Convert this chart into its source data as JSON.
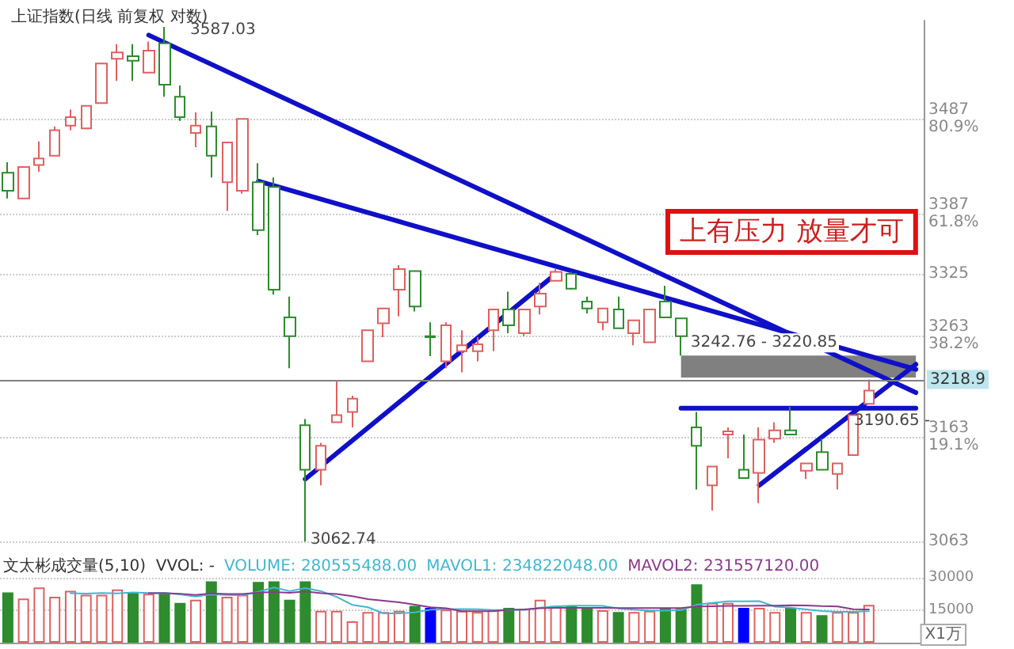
{
  "chart_data": [
    {
      "type": "candlestick",
      "title": "上证指数(日线 前复权 对数)",
      "categories": [
        null,
        null,
        null,
        null,
        null,
        null,
        null,
        null,
        null,
        null,
        null,
        null,
        null,
        null,
        null,
        null,
        null,
        null,
        null,
        null,
        null,
        null,
        null,
        null,
        null,
        null,
        null,
        null,
        null,
        null,
        null,
        null,
        null,
        null,
        null,
        null,
        null,
        null,
        null,
        null,
        null,
        null,
        null,
        null,
        null,
        null,
        null,
        null,
        null,
        null,
        null,
        null,
        null,
        null,
        null,
        null,
        null,
        null,
        null
      ],
      "ohlc": [
        [
          3430,
          3441,
          3403,
          3411
        ],
        [
          3403,
          3436,
          3403,
          3436
        ],
        [
          3438,
          3463,
          3431,
          3445
        ],
        [
          3448,
          3479,
          3448,
          3475
        ],
        [
          3480,
          3497,
          3475,
          3489
        ],
        [
          3477,
          3502,
          3477,
          3501
        ],
        [
          3504,
          3547,
          3504,
          3547
        ],
        [
          3552,
          3568,
          3528,
          3559
        ],
        [
          3555,
          3568,
          3528,
          3550
        ],
        [
          3537,
          3571,
          3537,
          3561
        ],
        [
          3569,
          3587.03,
          3511,
          3524
        ],
        [
          3511,
          3523,
          3485,
          3489
        ],
        [
          3472,
          3494,
          3457,
          3480
        ],
        [
          3479,
          3495,
          3425,
          3448
        ],
        [
          3420,
          3462,
          3390,
          3462
        ],
        [
          3411,
          3487,
          3408,
          3487
        ],
        [
          3420,
          3440,
          3365,
          3370
        ],
        [
          3415,
          3425,
          3304,
          3309
        ],
        [
          3281,
          3302,
          3230,
          3262
        ],
        [
          3174,
          3180,
          3062.74,
          3131
        ],
        [
          3131,
          3157,
          3116,
          3154
        ],
        [
          3177,
          3217,
          3177,
          3184
        ],
        [
          3187,
          3203,
          3172,
          3200
        ],
        [
          3237,
          3268,
          3237,
          3268
        ],
        [
          3275,
          3290,
          3261,
          3290
        ],
        [
          3309,
          3334,
          3282,
          3330
        ],
        [
          3328,
          3328,
          3287,
          3292
        ],
        [
          3262,
          3276,
          3242,
          3261
        ],
        [
          3237,
          3276,
          3230,
          3273
        ],
        [
          3247,
          3268,
          3226,
          3253
        ],
        [
          3247,
          3261,
          3237,
          3254
        ],
        [
          3268,
          3289,
          3247,
          3289
        ],
        [
          3289,
          3307,
          3265,
          3273
        ],
        [
          3265,
          3289,
          3262,
          3289
        ],
        [
          3292,
          3316,
          3284,
          3305
        ],
        [
          3318,
          3330,
          3318,
          3327
        ],
        [
          3325,
          3327,
          3309,
          3310
        ],
        [
          3297,
          3302,
          3285,
          3290
        ],
        [
          3276,
          3290,
          3268,
          3290
        ],
        [
          3289,
          3302,
          3270,
          3270
        ],
        [
          3265,
          3278,
          3253,
          3278
        ],
        [
          3256,
          3289,
          3256,
          3289
        ],
        [
          3297,
          3313,
          3281,
          3281
        ],
        [
          3280,
          3280,
          3242.76,
          3262
        ],
        [
          3172,
          3187,
          3112,
          3154
        ],
        [
          3116,
          3134,
          3092,
          3134
        ],
        [
          3165,
          3172,
          3142,
          3168
        ],
        [
          3131,
          3165,
          3123,
          3123
        ],
        [
          3128,
          3172,
          3099,
          3160
        ],
        [
          3161,
          3177,
          3157,
          3169
        ],
        [
          3169,
          3192,
          3165,
          3165
        ],
        [
          3130,
          3137,
          3122,
          3137
        ],
        [
          3148,
          3161,
          3131,
          3131
        ],
        [
          3127,
          3137,
          3112,
          3137
        ],
        [
          3145,
          3184,
          3145,
          3184
        ],
        [
          3195,
          3218.9,
          3195,
          3208
        ],
        null,
        null,
        null
      ],
      "colors": [
        "#2e8b2e",
        "#e06060",
        "#e06060",
        "#e06060",
        "#e06060",
        "#e06060",
        "#e06060",
        "#e06060",
        "#2e8b2e",
        "#e06060",
        "#2e8b2e",
        "#2e8b2e",
        "#e06060",
        "#2e8b2e",
        "#e06060",
        "#e06060",
        "#2e8b2e",
        "#2e8b2e",
        "#2e8b2e",
        "#2e8b2e",
        "#e06060",
        "#e06060",
        "#e06060",
        "#e06060",
        "#e06060",
        "#e06060",
        "#2e8b2e",
        "#2e8b2e",
        "#e06060",
        "#e06060",
        "#e06060",
        "#e06060",
        "#2e8b2e",
        "#e06060",
        "#e06060",
        "#e06060",
        "#2e8b2e",
        "#2e8b2e",
        "#e06060",
        "#2e8b2e",
        "#e06060",
        "#e06060",
        "#2e8b2e",
        "#2e8b2e",
        "#2e8b2e",
        "#e06060",
        "#e06060",
        "#2e8b2e",
        "#e06060",
        "#e06060",
        "#2e8b2e",
        "#e06060",
        "#2e8b2e",
        "#e06060",
        "#e06060",
        "#e06060",
        null,
        null,
        null
      ],
      "series": [
        {
          "type": "line",
          "color": "#1010c8",
          "values": [
            null,
            null,
            null,
            null,
            null,
            null,
            null,
            null,
            null,
            3578,
            null,
            null,
            null,
            null,
            null,
            null,
            null,
            null,
            null,
            null,
            null,
            null,
            null,
            null,
            null,
            null,
            null,
            null,
            null,
            null,
            null,
            null,
            null,
            null,
            null,
            null,
            null,
            null,
            null,
            null,
            null,
            null,
            null,
            null,
            null,
            null,
            null,
            null,
            null,
            null,
            null,
            null,
            null,
            null,
            null,
            null,
            null,
            null,
            3206
          ]
        },
        {
          "type": "line",
          "color": "#1010c8",
          "values": [
            null,
            null,
            null,
            null,
            null,
            null,
            null,
            null,
            null,
            null,
            null,
            null,
            null,
            null,
            null,
            null,
            3421,
            null,
            null,
            null,
            null,
            null,
            null,
            null,
            null,
            null,
            null,
            null,
            null,
            null,
            null,
            null,
            null,
            null,
            null,
            null,
            null,
            null,
            null,
            null,
            null,
            null,
            null,
            null,
            null,
            null,
            null,
            null,
            null,
            null,
            null,
            null,
            null,
            null,
            null,
            null,
            null,
            null,
            3229
          ]
        },
        {
          "type": "line",
          "color": "#1010c8",
          "values": [
            null,
            null,
            null,
            null,
            null,
            null,
            null,
            null,
            null,
            null,
            null,
            null,
            null,
            null,
            null,
            null,
            null,
            null,
            null,
            3122,
            null,
            null,
            null,
            null,
            null,
            null,
            null,
            null,
            null,
            null,
            null,
            null,
            null,
            null,
            null,
            3325,
            null,
            null,
            null,
            null,
            null,
            null,
            null,
            null,
            null,
            null,
            null,
            null,
            null,
            null,
            null,
            null,
            null,
            null,
            null,
            null,
            null,
            null,
            null
          ]
        },
        {
          "type": "line",
          "color": "#1010c8",
          "values": [
            null,
            null,
            null,
            null,
            null,
            null,
            null,
            null,
            null,
            null,
            null,
            null,
            null,
            null,
            null,
            null,
            null,
            null,
            null,
            null,
            null,
            null,
            null,
            null,
            null,
            null,
            null,
            null,
            null,
            null,
            null,
            null,
            null,
            null,
            null,
            null,
            null,
            null,
            null,
            null,
            null,
            null,
            null,
            3190.65,
            null,
            null,
            null,
            null,
            null,
            null,
            null,
            null,
            null,
            null,
            null,
            null,
            null,
            null,
            3190.65
          ]
        },
        {
          "type": "line",
          "color": "#1010c8",
          "values": [
            null,
            null,
            null,
            null,
            null,
            null,
            null,
            null,
            null,
            null,
            null,
            null,
            null,
            null,
            null,
            null,
            null,
            null,
            null,
            null,
            null,
            null,
            null,
            null,
            null,
            null,
            null,
            null,
            null,
            null,
            null,
            null,
            null,
            null,
            null,
            null,
            null,
            null,
            null,
            null,
            null,
            null,
            null,
            null,
            null,
            null,
            null,
            null,
            3116,
            null,
            null,
            null,
            null,
            null,
            null,
            null,
            null,
            null,
            3234
          ]
        }
      ],
      "log": true,
      "ylim": [
        3048,
        3594
      ],
      "yticks": [
        {
          "value": 3063,
          "label": "3063"
        },
        {
          "value": 3163,
          "label": "3163\n19.1%"
        },
        {
          "value": 3263,
          "label": "3263\n38.2%"
        },
        {
          "value": 3325,
          "label": "3325"
        },
        {
          "value": 3387,
          "label": "3387\n61.8%"
        },
        {
          "value": 3487,
          "label": "3487\n80.9%"
        }
      ],
      "ref_lines": [
        {
          "axis": "y",
          "value": 3218.9,
          "label": "3218.9",
          "color": "#808080"
        }
      ],
      "bands": [
        {
          "axis": "y",
          "from": 3220.85,
          "to": 3242.76,
          "label": "3242.76 - 3220.85",
          "color": "#808080"
        }
      ],
      "annotations": [
        "3587.03",
        "3062.74",
        {
          "text": "3190.65 -",
          "y": 3190.65
        },
        "上有压力 放量才可"
      ],
      "grid": "y",
      "marker": "none",
      "tick_labels": "y"
    },
    {
      "type": "bar",
      "ylabel": "X1万",
      "categories": [
        null,
        null,
        null,
        null,
        null,
        null,
        null,
        null,
        null,
        null,
        null,
        null,
        null,
        null,
        null,
        null,
        null,
        null,
        null,
        null,
        null,
        null,
        null,
        null,
        null,
        null,
        null,
        null,
        null,
        null,
        null,
        null,
        null,
        null,
        null,
        null,
        null,
        null,
        null,
        null,
        null,
        null,
        null,
        null,
        null,
        null,
        null,
        null,
        null,
        null,
        null,
        null,
        null,
        null,
        null,
        null,
        null,
        null,
        null
      ],
      "series": [
        {
          "type": "bar",
          "colors": [
            "#2e8b2e",
            "#e06060",
            "#e06060",
            "#e06060",
            "#e06060",
            "#e06060",
            "#e06060",
            "#e06060",
            "#2e8b2e",
            "#e06060",
            "#2e8b2e",
            "#2e8b2e",
            "#e06060",
            "#2e8b2e",
            "#e06060",
            "#e06060",
            "#2e8b2e",
            "#2e8b2e",
            "#2e8b2e",
            "#2e8b2e",
            "#e06060",
            "#e06060",
            "#e06060",
            "#e06060",
            "#e06060",
            "#e06060",
            "#2e8b2e",
            "#0000ff",
            "#e06060",
            "#e06060",
            "#e06060",
            "#e06060",
            "#2e8b2e",
            "#e06060",
            "#e06060",
            "#e06060",
            "#2e8b2e",
            "#2e8b2e",
            "#e06060",
            "#2e8b2e",
            "#e06060",
            "#e06060",
            "#2e8b2e",
            "#2e8b2e",
            "#2e8b2e",
            "#e06060",
            "#e06060",
            "#0000ff",
            "#e06060",
            "#e06060",
            "#2e8b2e",
            "#e06060",
            "#2e8b2e",
            "#e06060",
            "#e06060",
            "#e06060",
            null,
            null,
            null
          ],
          "values": [
            23200,
            20400,
            25500,
            21200,
            24000,
            22100,
            22100,
            24600,
            23200,
            22600,
            22600,
            18400,
            19800,
            28300,
            21200,
            22100,
            28055.5488,
            28300,
            19800,
            28300,
            14700,
            14700,
            9900,
            14200,
            14200,
            14700,
            17000,
            16100,
            15300,
            14700,
            14200,
            15300,
            16100,
            15600,
            19800,
            17000,
            17000,
            16100,
            15000,
            14200,
            14200,
            14700,
            16100,
            15600,
            27000,
            18400,
            18400,
            16100,
            16100,
            14200,
            16100,
            14200,
            12700,
            14200,
            14200,
            17500,
            null,
            null,
            null
          ]
        },
        {
          "type": "line",
          "color": "#40b8d0",
          "values": [
            null,
            null,
            null,
            null,
            22860,
            22640,
            22980,
            22800,
            23200,
            22920,
            23020,
            22280,
            21320,
            22340,
            22060,
            21960,
            23482.2048,
            25520,
            23820,
            25240,
            23760,
            21160,
            17480,
            16360,
            13540,
            13540,
            14000,
            15240,
            15460,
            15560,
            15460,
            15120,
            15120,
            15180,
            16200,
            16760,
            17100,
            17100,
            16980,
            15860,
            15300,
            14840,
            14840,
            14960,
            17520,
            18360,
            19100,
            19100,
            19200,
            16640,
            16180,
            15340,
            14660,
            14280,
            14280,
            14560,
            null,
            null,
            null
          ]
        },
        {
          "type": "line",
          "color": "#8b3a8b",
          "values": [
            null,
            null,
            null,
            null,
            null,
            null,
            null,
            null,
            null,
            22890,
            22830,
            22630,
            22060,
            22770,
            22490,
            22490,
            23155.712,
            23420,
            23080,
            23650,
            22860,
            22490,
            21500,
            20090,
            19390,
            18650,
            17580,
            16360,
            15910,
            14550,
            14500,
            14560,
            15180,
            15320,
            15880,
            16110,
            16110,
            16110,
            16080,
            16030,
            16030,
            15970,
            15970,
            15970,
            16690,
            16830,
            16970,
            16970,
            17080,
            17080,
            17270,
            17220,
            16880,
            16740,
            15460,
            15370,
            null,
            null,
            null
          ]
        }
      ],
      "ylim": [
        0,
        39500
      ],
      "yticks": [
        15000,
        30000
      ],
      "annotations": [
        "文太彬成交量(5,10)  VVOL: -",
        "VOLUME: 280555488.00",
        "MAVOL1: 234822048.00",
        "MAVOL2: 231557120.00"
      ],
      "grid": "y",
      "marker": "none",
      "tick_labels": "y"
    }
  ]
}
